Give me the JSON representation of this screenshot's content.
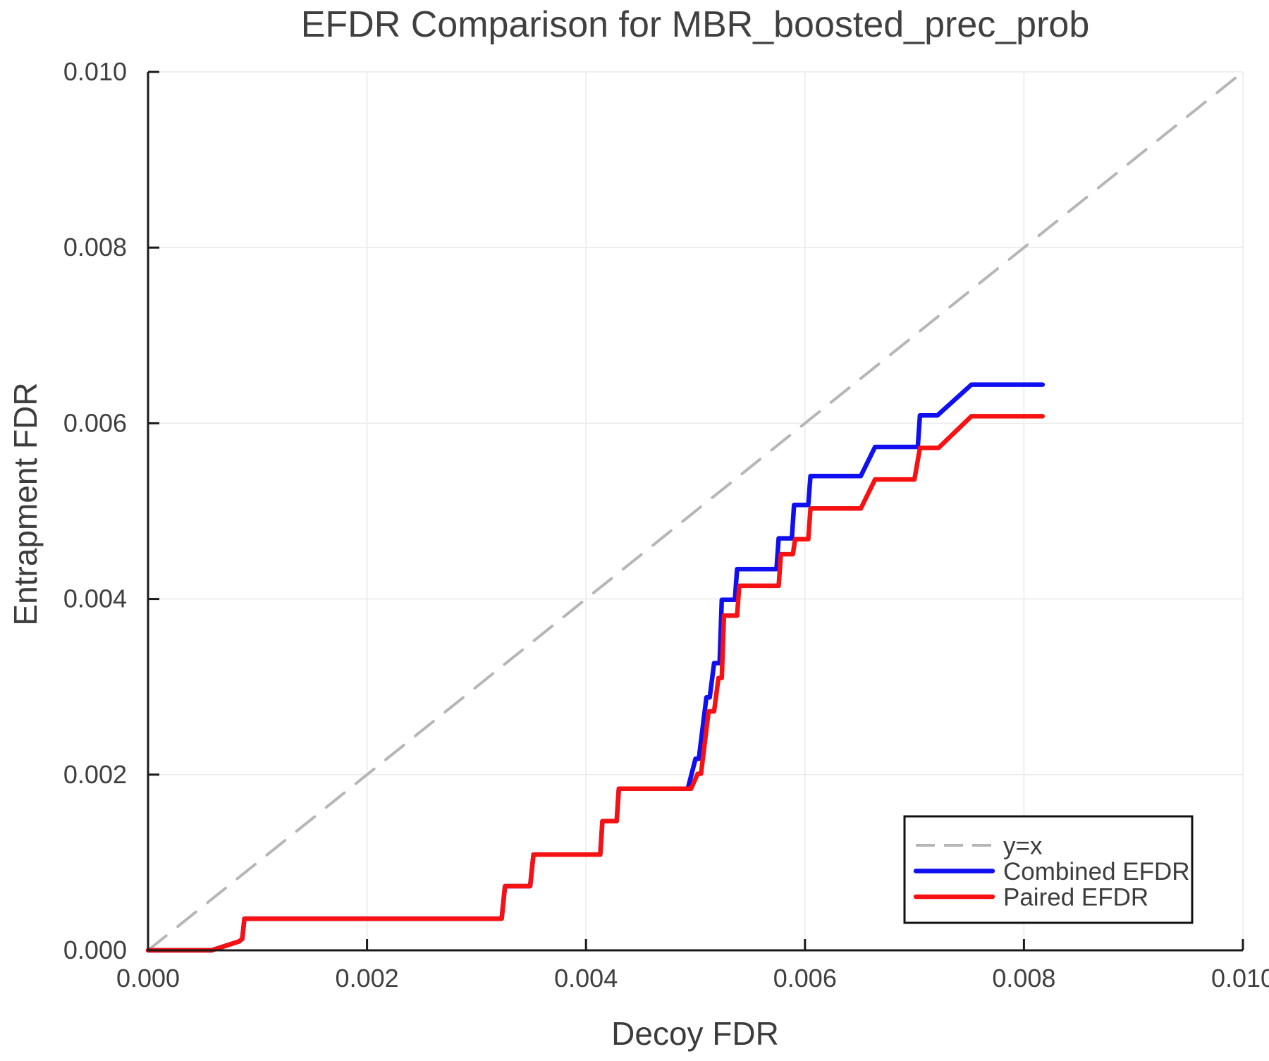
{
  "figure": {
    "background": "#ffffff"
  },
  "style_colors": {
    "grid": "#ebebeb",
    "spine": "#1a1a1a",
    "tick_mark": "#1a1a1a",
    "tick_text": "#3f3f3f",
    "title_text": "#404040",
    "legend_border": "#111111",
    "legend_background": "#ffffff",
    "reference_line": "#b6b6b6",
    "combined_line": "#0f0ff2",
    "paired_line": "#f61212"
  },
  "chart_data": {
    "type": "line",
    "title": "EFDR Comparison for MBR_boosted_prec_prob",
    "xlabel": "Decoy FDR",
    "ylabel": "Entrapment FDR",
    "xlim": [
      0.0,
      0.01
    ],
    "ylim": [
      0.0,
      0.01
    ],
    "xticks": [
      0.0,
      0.002,
      0.004,
      0.006,
      0.008,
      0.01
    ],
    "xtick_labels": [
      "0.000",
      "0.002",
      "0.004",
      "0.006",
      "0.008",
      "0.010"
    ],
    "yticks": [
      0.0,
      0.002,
      0.004,
      0.006,
      0.008,
      0.01
    ],
    "ytick_labels": [
      "0.000",
      "0.002",
      "0.004",
      "0.006",
      "0.008",
      "0.010"
    ],
    "grid": true,
    "legend": {
      "position": "lower right",
      "labels": [
        "y=x",
        "Combined EFDR",
        "Paired EFDR"
      ]
    },
    "series": [
      {
        "name": "y=x",
        "role": "reference",
        "color": "#b6b6b6",
        "dash": [
          33,
          21
        ],
        "legend_dash": [
          27,
          13
        ],
        "width": 4,
        "points": [
          [
            0.0,
            0.0
          ],
          [
            0.01,
            0.01
          ]
        ]
      },
      {
        "name": "Combined EFDR",
        "role": "data",
        "color": "#0f0ff2",
        "dash": null,
        "width": 6.5,
        "points": [
          [
            0.0,
            0.0
          ],
          [
            0.00058,
            0.0
          ],
          [
            0.00083,
            0.0001
          ],
          [
            0.00086,
            0.00013
          ],
          [
            0.00088,
            0.00036
          ],
          [
            0.00323,
            0.00036
          ],
          [
            0.00326,
            0.00073
          ],
          [
            0.00349,
            0.00073
          ],
          [
            0.00352,
            0.00109
          ],
          [
            0.00413,
            0.00109
          ],
          [
            0.00415,
            0.00147
          ],
          [
            0.00428,
            0.00147
          ],
          [
            0.0043,
            0.00184
          ],
          [
            0.00493,
            0.00184
          ],
          [
            0.005,
            0.00218
          ],
          [
            0.00503,
            0.00218
          ],
          [
            0.0051,
            0.00288
          ],
          [
            0.00513,
            0.00288
          ],
          [
            0.00517,
            0.00327
          ],
          [
            0.00522,
            0.00327
          ],
          [
            0.00524,
            0.00399
          ],
          [
            0.00536,
            0.00399
          ],
          [
            0.00538,
            0.00434
          ],
          [
            0.00574,
            0.00434
          ],
          [
            0.00576,
            0.00469
          ],
          [
            0.00588,
            0.00469
          ],
          [
            0.0059,
            0.00507
          ],
          [
            0.00603,
            0.00507
          ],
          [
            0.00605,
            0.0054
          ],
          [
            0.00651,
            0.0054
          ],
          [
            0.00664,
            0.00573
          ],
          [
            0.00703,
            0.00573
          ],
          [
            0.00705,
            0.00609
          ],
          [
            0.00721,
            0.00609
          ],
          [
            0.00752,
            0.00644
          ],
          [
            0.00817,
            0.00644
          ]
        ]
      },
      {
        "name": "Paired EFDR",
        "role": "data",
        "color": "#f61212",
        "dash": null,
        "width": 6.5,
        "points": [
          [
            0.0,
            0.0
          ],
          [
            0.00058,
            0.0
          ],
          [
            0.00083,
            0.0001
          ],
          [
            0.00086,
            0.00013
          ],
          [
            0.00088,
            0.00036
          ],
          [
            0.00323,
            0.00036
          ],
          [
            0.00326,
            0.00073
          ],
          [
            0.00349,
            0.00073
          ],
          [
            0.00352,
            0.00109
          ],
          [
            0.00413,
            0.00109
          ],
          [
            0.00415,
            0.00147
          ],
          [
            0.00428,
            0.00147
          ],
          [
            0.0043,
            0.00184
          ],
          [
            0.00496,
            0.00184
          ],
          [
            0.00502,
            0.00201
          ],
          [
            0.00505,
            0.00201
          ],
          [
            0.00512,
            0.00272
          ],
          [
            0.00517,
            0.00272
          ],
          [
            0.00521,
            0.0031
          ],
          [
            0.00524,
            0.0031
          ],
          [
            0.00526,
            0.00381
          ],
          [
            0.00538,
            0.00381
          ],
          [
            0.0054,
            0.00415
          ],
          [
            0.00576,
            0.00415
          ],
          [
            0.00578,
            0.00451
          ],
          [
            0.00589,
            0.00451
          ],
          [
            0.00591,
            0.00468
          ],
          [
            0.00603,
            0.00468
          ],
          [
            0.00605,
            0.00503
          ],
          [
            0.00651,
            0.00503
          ],
          [
            0.00664,
            0.00536
          ],
          [
            0.007,
            0.00536
          ],
          [
            0.00705,
            0.00572
          ],
          [
            0.00722,
            0.00572
          ],
          [
            0.00752,
            0.00608
          ],
          [
            0.00817,
            0.00608
          ]
        ]
      }
    ]
  }
}
